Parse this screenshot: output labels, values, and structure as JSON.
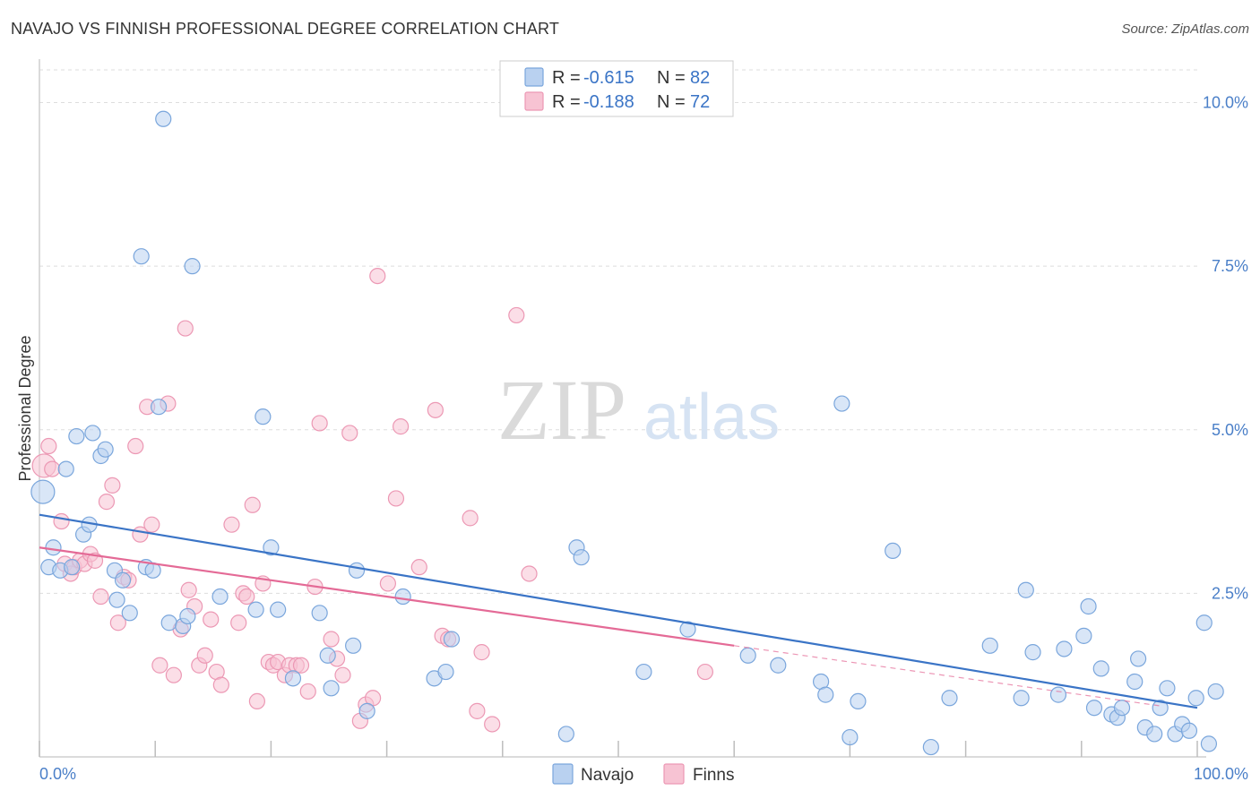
{
  "title": "NAVAJO VS FINNISH PROFESSIONAL DEGREE CORRELATION CHART",
  "source": "Source: ZipAtlas.com",
  "watermark": {
    "part1": "ZIP",
    "part2": "atlas"
  },
  "colors": {
    "navajo_fill": "#b9d1f0",
    "navajo_stroke": "#7aa6dc",
    "navajo_line": "#3a74c6",
    "finns_fill": "#f7c3d3",
    "finns_stroke": "#ec98b4",
    "finns_line": "#e46a96",
    "tick_label": "#4a7fc8",
    "grid": "#dddddd"
  },
  "legend_box": {
    "rows": [
      {
        "r_label": "R = ",
        "r_value": "-0.615",
        "n_label": "N = ",
        "n_value": "82"
      },
      {
        "r_label": "R = ",
        "r_value": "-0.188",
        "n_label": "N = ",
        "n_value": "72"
      }
    ]
  },
  "chart_data": {
    "type": "scatter",
    "title": "NAVAJO VS FINNISH PROFESSIONAL DEGREE CORRELATION CHART",
    "xlabel": "",
    "ylabel": "Professional Degree",
    "xlim": [
      0,
      100
    ],
    "ylim": [
      0,
      10.5
    ],
    "x_tick_labels": [
      "0.0%",
      "100.0%"
    ],
    "y_ticks": [
      2.5,
      5.0,
      7.5,
      10.0
    ],
    "y_tick_labels": [
      "2.5%",
      "5.0%",
      "7.5%",
      "10.0%"
    ],
    "grid": true,
    "legend_position": "top-center",
    "bottom_legend": [
      "Navajo",
      "Finns"
    ],
    "series": [
      {
        "name": "Navajo",
        "r": -0.615,
        "n": 82,
        "trend": {
          "x": [
            0,
            100
          ],
          "y": [
            3.7,
            0.75
          ]
        },
        "points": [
          [
            0.3,
            4.05
          ],
          [
            0.8,
            2.9
          ],
          [
            1.2,
            3.2
          ],
          [
            1.8,
            2.85
          ],
          [
            2.3,
            4.4
          ],
          [
            2.8,
            2.9
          ],
          [
            3.2,
            4.9
          ],
          [
            3.8,
            3.4
          ],
          [
            4.3,
            3.55
          ],
          [
            4.6,
            4.95
          ],
          [
            5.3,
            4.6
          ],
          [
            5.7,
            4.7
          ],
          [
            6.5,
            2.85
          ],
          [
            6.7,
            2.4
          ],
          [
            7.2,
            2.7
          ],
          [
            7.8,
            2.2
          ],
          [
            8.8,
            7.65
          ],
          [
            9.2,
            2.9
          ],
          [
            9.8,
            2.85
          ],
          [
            10.3,
            5.35
          ],
          [
            10.7,
            9.75
          ],
          [
            11.2,
            2.05
          ],
          [
            12.4,
            2.0
          ],
          [
            12.8,
            2.15
          ],
          [
            13.2,
            7.5
          ],
          [
            15.6,
            2.45
          ],
          [
            18.7,
            2.25
          ],
          [
            19.3,
            5.2
          ],
          [
            20.0,
            3.2
          ],
          [
            20.6,
            2.25
          ],
          [
            21.9,
            1.2
          ],
          [
            24.2,
            2.2
          ],
          [
            24.9,
            1.55
          ],
          [
            25.2,
            1.05
          ],
          [
            27.1,
            1.7
          ],
          [
            27.4,
            2.85
          ],
          [
            28.3,
            0.7
          ],
          [
            31.4,
            2.45
          ],
          [
            34.1,
            1.2
          ],
          [
            35.1,
            1.3
          ],
          [
            35.6,
            1.8
          ],
          [
            45.5,
            0.35
          ],
          [
            46.4,
            3.2
          ],
          [
            46.8,
            3.05
          ],
          [
            52.2,
            1.3
          ],
          [
            56.0,
            1.95
          ],
          [
            61.2,
            1.55
          ],
          [
            63.8,
            1.4
          ],
          [
            67.5,
            1.15
          ],
          [
            67.9,
            0.95
          ],
          [
            69.3,
            5.4
          ],
          [
            70.0,
            0.3
          ],
          [
            70.7,
            0.85
          ],
          [
            73.7,
            3.15
          ],
          [
            77.0,
            0.15
          ],
          [
            78.6,
            0.9
          ],
          [
            82.1,
            1.7
          ],
          [
            84.8,
            0.9
          ],
          [
            85.2,
            2.55
          ],
          [
            85.8,
            1.6
          ],
          [
            88.0,
            0.95
          ],
          [
            88.5,
            1.65
          ],
          [
            90.2,
            1.85
          ],
          [
            90.6,
            2.3
          ],
          [
            91.1,
            0.75
          ],
          [
            91.7,
            1.35
          ],
          [
            92.6,
            0.65
          ],
          [
            93.1,
            0.6
          ],
          [
            93.5,
            0.75
          ],
          [
            94.6,
            1.15
          ],
          [
            94.9,
            1.5
          ],
          [
            95.5,
            0.45
          ],
          [
            96.3,
            0.35
          ],
          [
            96.8,
            0.75
          ],
          [
            97.4,
            1.05
          ],
          [
            98.1,
            0.35
          ],
          [
            98.7,
            0.5
          ],
          [
            99.3,
            0.4
          ],
          [
            99.9,
            0.9
          ],
          [
            100.6,
            2.05
          ],
          [
            101.0,
            0.2
          ],
          [
            101.6,
            1.0
          ]
        ]
      },
      {
        "name": "Finns",
        "r": -0.188,
        "n": 72,
        "trend": {
          "x": [
            0,
            60
          ],
          "y": [
            3.2,
            1.7
          ]
        },
        "points": [
          [
            0.4,
            4.45
          ],
          [
            0.8,
            4.75
          ],
          [
            1.1,
            4.4
          ],
          [
            1.9,
            3.6
          ],
          [
            2.2,
            2.95
          ],
          [
            2.7,
            2.8
          ],
          [
            3.0,
            2.9
          ],
          [
            3.5,
            3.0
          ],
          [
            3.9,
            2.95
          ],
          [
            4.4,
            3.1
          ],
          [
            4.8,
            3.0
          ],
          [
            5.3,
            2.45
          ],
          [
            5.8,
            3.9
          ],
          [
            6.3,
            4.15
          ],
          [
            6.8,
            2.05
          ],
          [
            7.3,
            2.75
          ],
          [
            7.7,
            2.7
          ],
          [
            8.3,
            4.75
          ],
          [
            8.7,
            3.4
          ],
          [
            9.3,
            5.35
          ],
          [
            9.7,
            3.55
          ],
          [
            10.4,
            1.4
          ],
          [
            11.1,
            5.4
          ],
          [
            11.6,
            1.25
          ],
          [
            12.2,
            1.95
          ],
          [
            12.6,
            6.55
          ],
          [
            12.9,
            2.55
          ],
          [
            13.4,
            2.3
          ],
          [
            13.8,
            1.4
          ],
          [
            14.3,
            1.55
          ],
          [
            14.8,
            2.1
          ],
          [
            15.3,
            1.3
          ],
          [
            15.7,
            1.1
          ],
          [
            16.6,
            3.55
          ],
          [
            17.2,
            2.05
          ],
          [
            17.6,
            2.5
          ],
          [
            17.9,
            2.45
          ],
          [
            18.4,
            3.85
          ],
          [
            18.8,
            0.85
          ],
          [
            19.3,
            2.65
          ],
          [
            19.8,
            1.45
          ],
          [
            20.2,
            1.4
          ],
          [
            20.6,
            1.45
          ],
          [
            21.2,
            1.25
          ],
          [
            21.6,
            1.4
          ],
          [
            22.2,
            1.4
          ],
          [
            22.6,
            1.4
          ],
          [
            23.2,
            1.0
          ],
          [
            23.8,
            2.6
          ],
          [
            24.2,
            5.1
          ],
          [
            25.2,
            1.8
          ],
          [
            25.7,
            1.5
          ],
          [
            26.2,
            1.25
          ],
          [
            26.8,
            4.95
          ],
          [
            27.7,
            0.55
          ],
          [
            28.2,
            0.8
          ],
          [
            28.8,
            0.9
          ],
          [
            29.2,
            7.35
          ],
          [
            30.1,
            2.65
          ],
          [
            30.8,
            3.95
          ],
          [
            31.2,
            5.05
          ],
          [
            32.8,
            2.9
          ],
          [
            34.2,
            5.3
          ],
          [
            34.8,
            1.85
          ],
          [
            35.3,
            1.8
          ],
          [
            37.2,
            3.65
          ],
          [
            37.8,
            0.7
          ],
          [
            38.2,
            1.6
          ],
          [
            39.1,
            0.5
          ],
          [
            41.2,
            6.75
          ],
          [
            42.3,
            2.8
          ],
          [
            57.5,
            1.3
          ]
        ]
      }
    ]
  }
}
